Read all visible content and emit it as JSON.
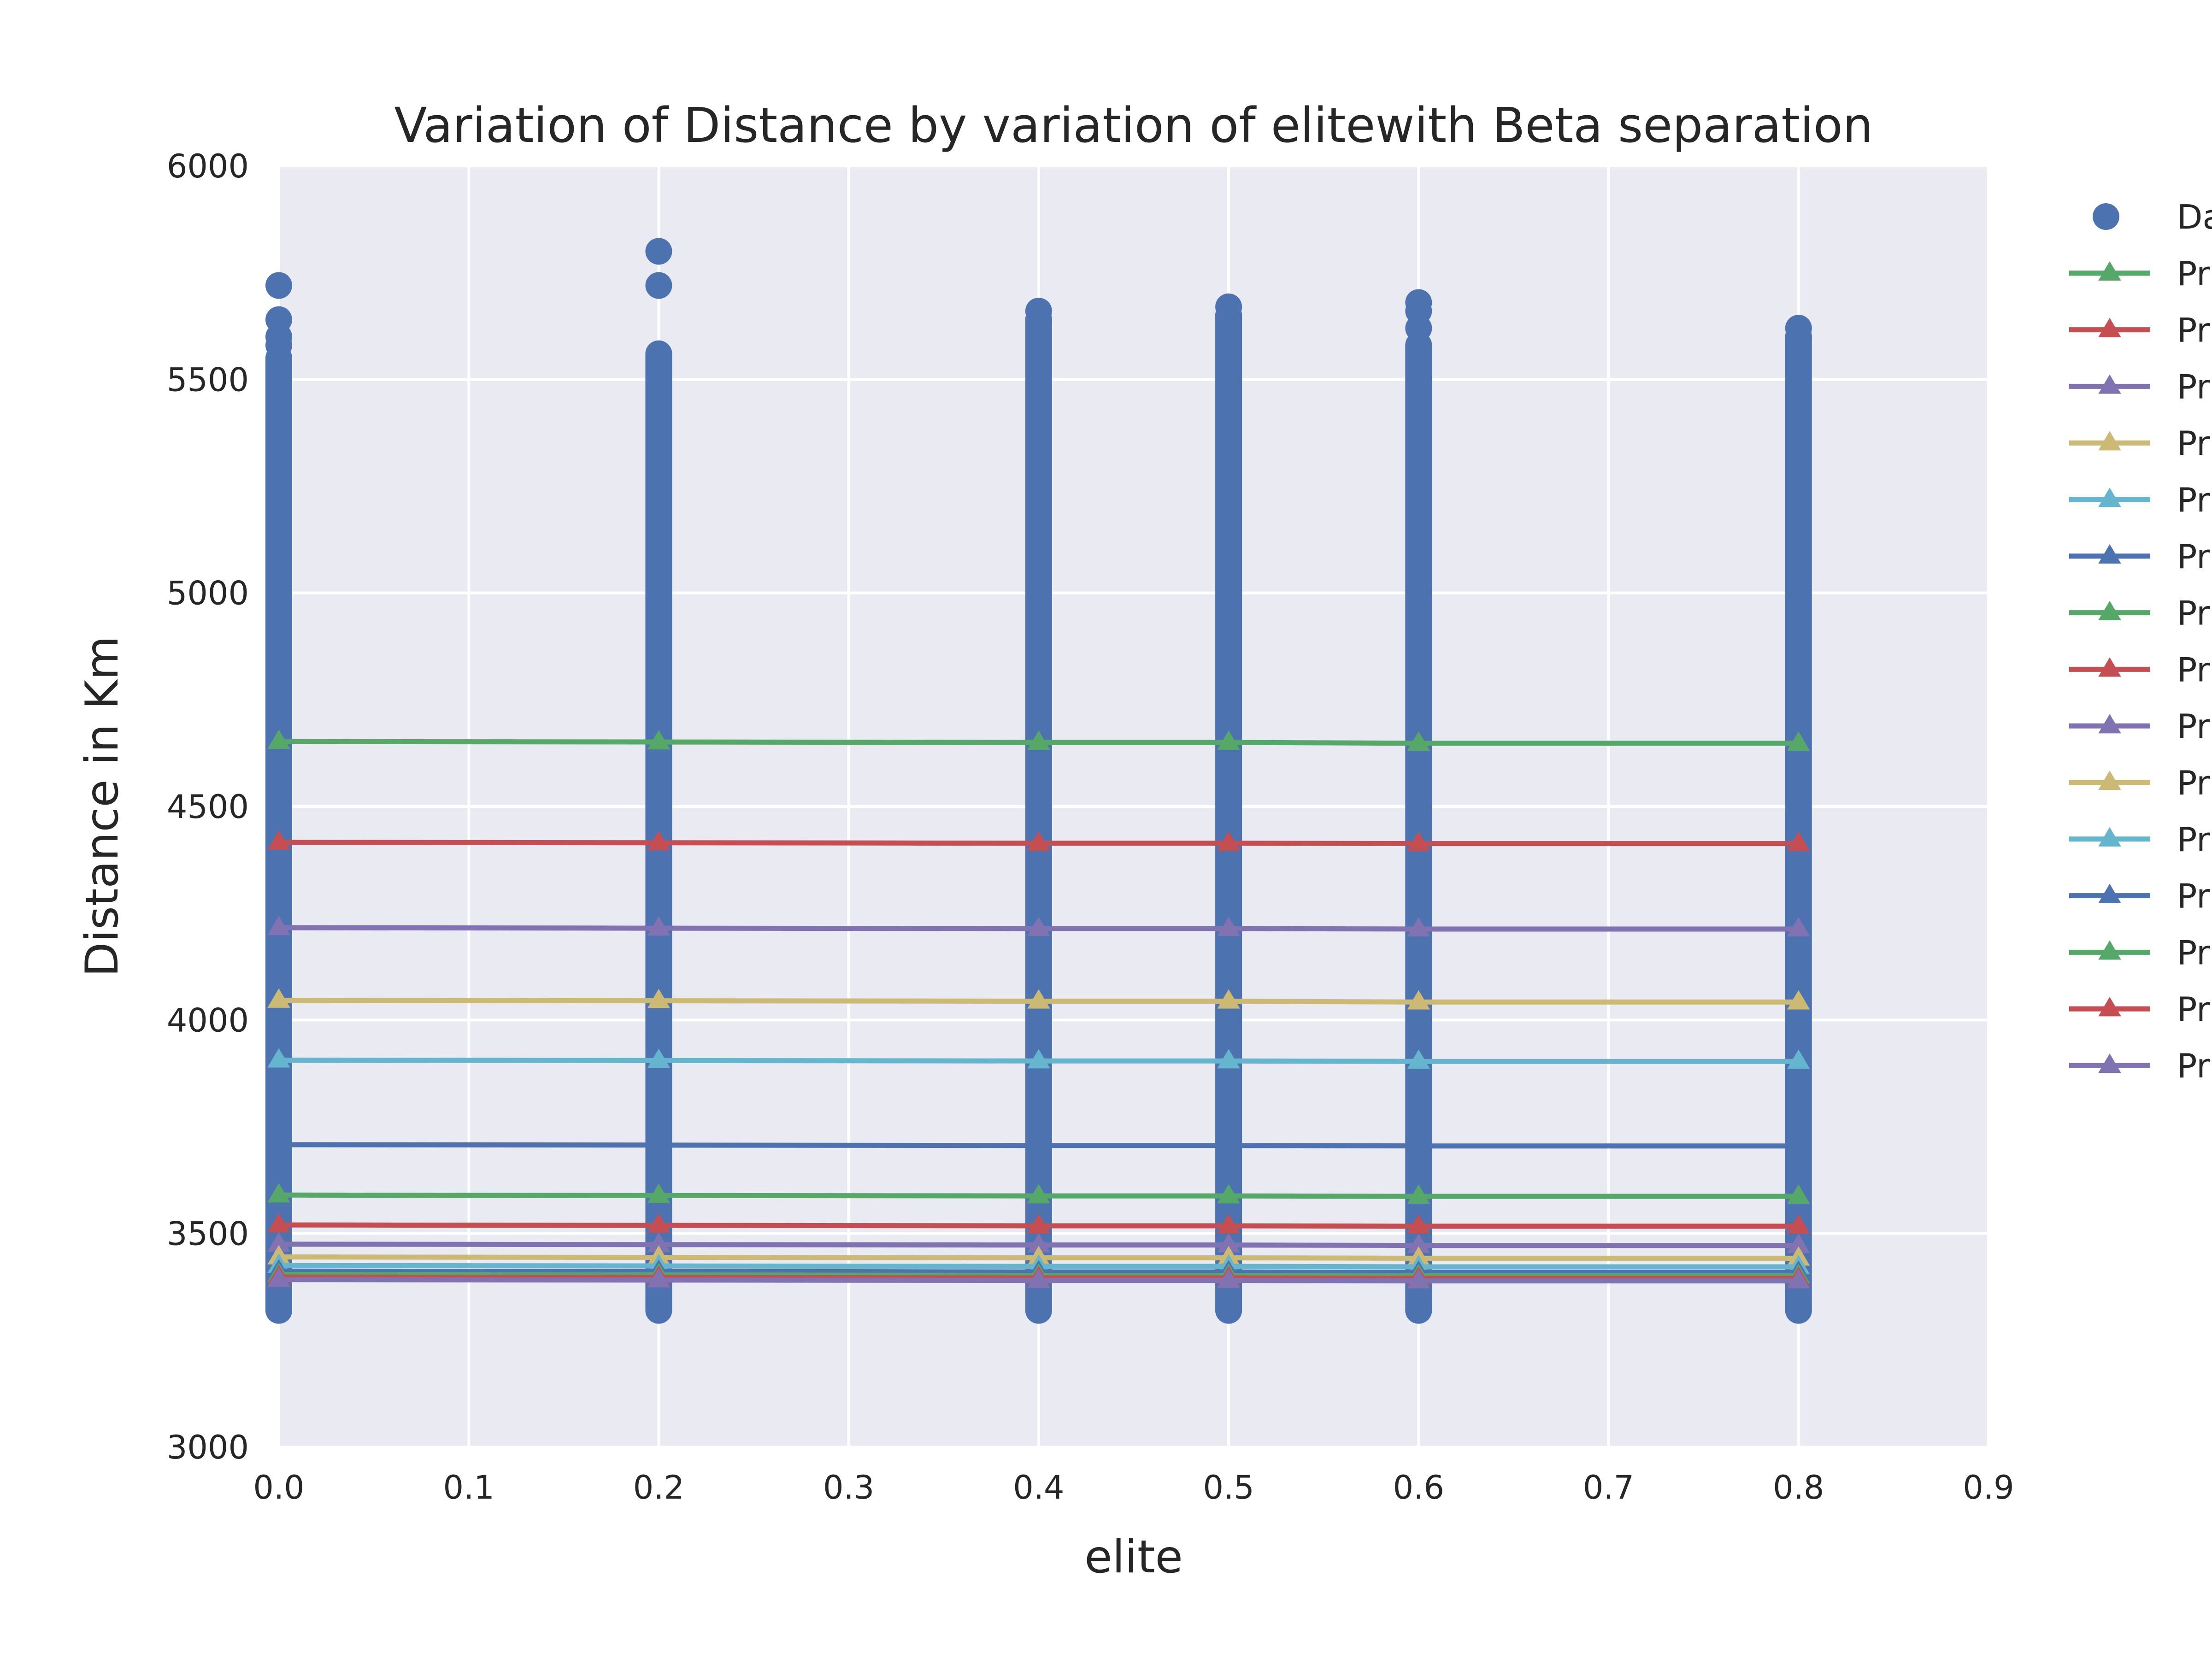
{
  "chart_data": {
    "type": "line",
    "title": "Variation of  Distance by variation of elitewith Beta separation",
    "xlabel": "elite",
    "ylabel": "Distance in Km",
    "xlim": [
      0,
      0.9
    ],
    "ylim": [
      3000,
      6000
    ],
    "xticks": [
      0.0,
      0.1,
      0.2,
      0.3,
      0.4,
      0.5,
      0.6,
      0.7,
      0.8,
      0.9
    ],
    "xtick_labels": [
      "0.0",
      "0.1",
      "0.2",
      "0.3",
      "0.4",
      "0.5",
      "0.6",
      "0.7",
      "0.8",
      "0.9"
    ],
    "yticks": [
      3000,
      3500,
      4000,
      4500,
      5000,
      5500,
      6000
    ],
    "ytick_labels": [
      "3000",
      "3500",
      "4000",
      "4500",
      "5000",
      "5500",
      "6000"
    ],
    "grid": true,
    "legend_position": "outside-right",
    "x": [
      0.0,
      0.2,
      0.4,
      0.5,
      0.6,
      0.8
    ],
    "scatter": {
      "name": "Da",
      "color": "#4C72B0",
      "columns": [
        {
          "x": 0.0,
          "min": 3320,
          "max": 5550,
          "outliers": [
            5580,
            5600,
            5640,
            5720
          ]
        },
        {
          "x": 0.2,
          "min": 3320,
          "max": 5560,
          "outliers": [
            5720,
            5800
          ]
        },
        {
          "x": 0.4,
          "min": 3320,
          "max": 5640,
          "outliers": [
            5660
          ]
        },
        {
          "x": 0.5,
          "min": 3320,
          "max": 5650,
          "outliers": [
            5670
          ]
        },
        {
          "x": 0.6,
          "min": 3320,
          "max": 5580,
          "outliers": [
            5620,
            5660,
            5680
          ]
        },
        {
          "x": 0.8,
          "min": 3320,
          "max": 5600,
          "outliers": [
            5620
          ]
        }
      ]
    },
    "series": [
      {
        "name": "Pr",
        "color": "#55A868",
        "values": [
          4652,
          4651,
          4650,
          4650,
          4648,
          4648
        ]
      },
      {
        "name": "Pr",
        "color": "#C44E52",
        "values": [
          4416,
          4415,
          4414,
          4414,
          4413,
          4413
        ]
      },
      {
        "name": "Pr",
        "color": "#8172B2",
        "values": [
          4216,
          4215,
          4214,
          4214,
          4213,
          4213
        ]
      },
      {
        "name": "Pr",
        "color": "#CCB974",
        "values": [
          4046,
          4045,
          4044,
          4044,
          4042,
          4042
        ]
      },
      {
        "name": "Pr",
        "color": "#64B5CD",
        "values": [
          3906,
          3905,
          3904,
          3904,
          3903,
          3903
        ]
      },
      {
        "name": "Pr",
        "color": "#4C72B0",
        "values": [
          3708,
          3707,
          3706,
          3706,
          3705,
          3705
        ]
      },
      {
        "name": "Pr",
        "color": "#55A868",
        "values": [
          3590,
          3589,
          3588,
          3588,
          3587,
          3587
        ]
      },
      {
        "name": "Pr",
        "color": "#C44E52",
        "values": [
          3520,
          3519,
          3518,
          3518,
          3517,
          3517
        ]
      },
      {
        "name": "Pr",
        "color": "#8172B2",
        "values": [
          3475,
          3474,
          3473,
          3473,
          3472,
          3472
        ]
      },
      {
        "name": "Pr",
        "color": "#CCB974",
        "values": [
          3445,
          3444,
          3443,
          3443,
          3442,
          3442
        ]
      },
      {
        "name": "Pr",
        "color": "#64B5CD",
        "values": [
          3425,
          3424,
          3423,
          3423,
          3422,
          3422
        ]
      },
      {
        "name": "Pr",
        "color": "#4C72B0",
        "values": [
          3412,
          3411,
          3410,
          3410,
          3409,
          3409
        ]
      },
      {
        "name": "Pr",
        "color": "#55A868",
        "values": [
          3404,
          3403,
          3402,
          3402,
          3401,
          3401
        ]
      },
      {
        "name": "Pr",
        "color": "#C44E52",
        "values": [
          3398,
          3397,
          3396,
          3396,
          3395,
          3395
        ]
      },
      {
        "name": "Pr",
        "color": "#8172B2",
        "values": [
          3392,
          3391,
          3390,
          3390,
          3389,
          3389
        ]
      }
    ]
  }
}
